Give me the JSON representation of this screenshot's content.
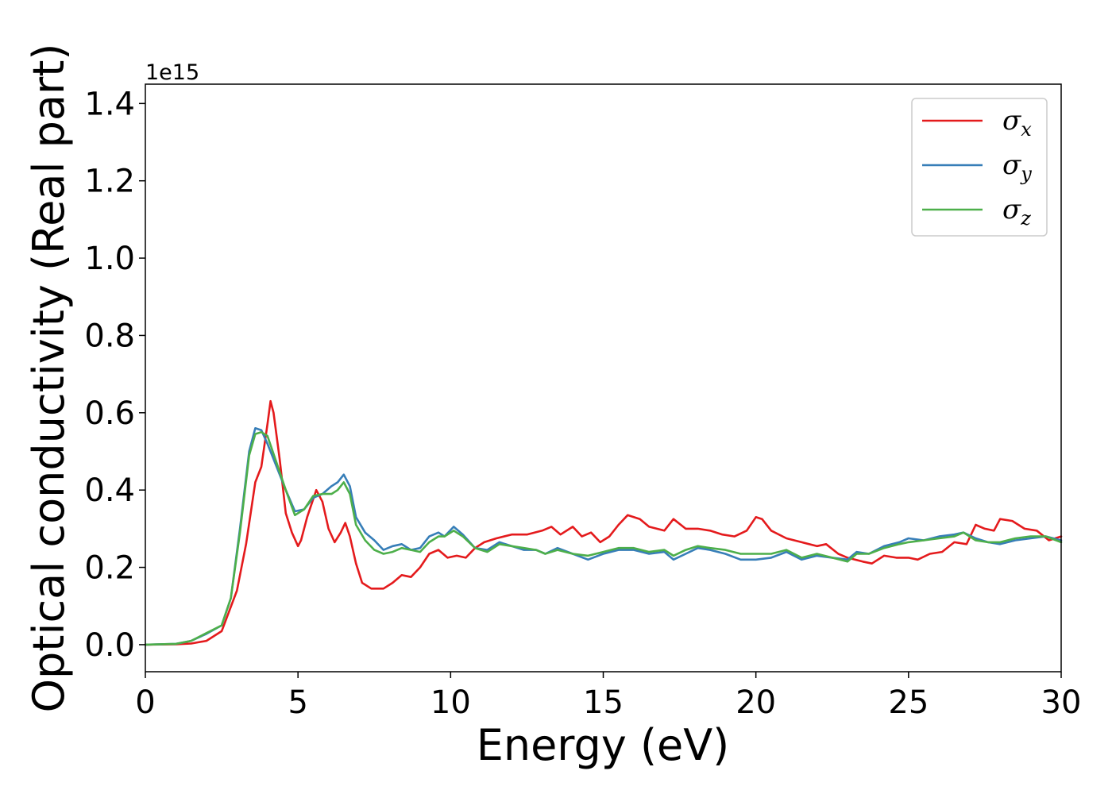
{
  "chart_data": {
    "type": "line",
    "title": "",
    "xlabel": "Energy (eV)",
    "ylabel": "Optical conductivity (Real part)",
    "y_offset_label": "1e15",
    "xlim": [
      0,
      30
    ],
    "ylim": [
      -0.07,
      1.45
    ],
    "xticks": [
      0,
      5,
      10,
      15,
      20,
      25,
      30
    ],
    "yticks": [
      0.0,
      0.2,
      0.4,
      0.6,
      0.8,
      1.0,
      1.2,
      1.4
    ],
    "xtick_labels": [
      "0",
      "5",
      "10",
      "15",
      "20",
      "25",
      "30"
    ],
    "ytick_labels": [
      "0.0",
      "0.2",
      "0.4",
      "0.6",
      "0.8",
      "1.0",
      "1.2",
      "1.4"
    ],
    "grid": false,
    "legend_position": "top-right",
    "series": [
      {
        "name": "σx",
        "name_base": "σ",
        "name_sub": "x",
        "color": "#e41a1c",
        "points": [
          [
            0,
            0
          ],
          [
            1,
            0.001
          ],
          [
            1.5,
            0.003
          ],
          [
            2,
            0.01
          ],
          [
            2.5,
            0.035
          ],
          [
            3,
            0.14
          ],
          [
            3.3,
            0.26
          ],
          [
            3.6,
            0.42
          ],
          [
            3.8,
            0.46
          ],
          [
            4.0,
            0.57
          ],
          [
            4.1,
            0.63
          ],
          [
            4.2,
            0.6
          ],
          [
            4.4,
            0.48
          ],
          [
            4.6,
            0.34
          ],
          [
            4.8,
            0.29
          ],
          [
            5.0,
            0.255
          ],
          [
            5.1,
            0.27
          ],
          [
            5.3,
            0.33
          ],
          [
            5.6,
            0.4
          ],
          [
            5.8,
            0.37
          ],
          [
            6.0,
            0.3
          ],
          [
            6.2,
            0.265
          ],
          [
            6.4,
            0.29
          ],
          [
            6.55,
            0.315
          ],
          [
            6.7,
            0.28
          ],
          [
            6.9,
            0.21
          ],
          [
            7.1,
            0.16
          ],
          [
            7.4,
            0.145
          ],
          [
            7.8,
            0.145
          ],
          [
            8.1,
            0.16
          ],
          [
            8.4,
            0.18
          ],
          [
            8.7,
            0.175
          ],
          [
            9.0,
            0.2
          ],
          [
            9.3,
            0.235
          ],
          [
            9.6,
            0.245
          ],
          [
            9.9,
            0.225
          ],
          [
            10.2,
            0.23
          ],
          [
            10.5,
            0.225
          ],
          [
            10.8,
            0.25
          ],
          [
            11.1,
            0.265
          ],
          [
            11.5,
            0.275
          ],
          [
            12.0,
            0.285
          ],
          [
            12.5,
            0.285
          ],
          [
            13.0,
            0.295
          ],
          [
            13.3,
            0.305
          ],
          [
            13.6,
            0.285
          ],
          [
            14.0,
            0.305
          ],
          [
            14.3,
            0.28
          ],
          [
            14.6,
            0.29
          ],
          [
            14.9,
            0.265
          ],
          [
            15.2,
            0.28
          ],
          [
            15.5,
            0.31
          ],
          [
            15.8,
            0.335
          ],
          [
            16.2,
            0.325
          ],
          [
            16.5,
            0.305
          ],
          [
            17.0,
            0.295
          ],
          [
            17.3,
            0.325
          ],
          [
            17.7,
            0.3
          ],
          [
            18.1,
            0.3
          ],
          [
            18.5,
            0.295
          ],
          [
            18.9,
            0.285
          ],
          [
            19.3,
            0.28
          ],
          [
            19.7,
            0.295
          ],
          [
            20.0,
            0.33
          ],
          [
            20.2,
            0.325
          ],
          [
            20.5,
            0.295
          ],
          [
            21.0,
            0.275
          ],
          [
            21.5,
            0.265
          ],
          [
            22.0,
            0.255
          ],
          [
            22.3,
            0.26
          ],
          [
            22.7,
            0.235
          ],
          [
            23.0,
            0.225
          ],
          [
            23.5,
            0.215
          ],
          [
            23.8,
            0.21
          ],
          [
            24.2,
            0.23
          ],
          [
            24.6,
            0.225
          ],
          [
            25.0,
            0.225
          ],
          [
            25.3,
            0.22
          ],
          [
            25.7,
            0.235
          ],
          [
            26.1,
            0.24
          ],
          [
            26.5,
            0.265
          ],
          [
            26.9,
            0.26
          ],
          [
            27.2,
            0.31
          ],
          [
            27.5,
            0.3
          ],
          [
            27.8,
            0.295
          ],
          [
            28.0,
            0.325
          ],
          [
            28.4,
            0.32
          ],
          [
            28.8,
            0.3
          ],
          [
            29.2,
            0.295
          ],
          [
            29.6,
            0.27
          ],
          [
            30,
            0.28
          ]
        ]
      },
      {
        "name": "σy",
        "name_base": "σ",
        "name_sub": "y",
        "color": "#377eb8",
        "points": [
          [
            0,
            0
          ],
          [
            1,
            0.002
          ],
          [
            1.5,
            0.01
          ],
          [
            2,
            0.028
          ],
          [
            2.5,
            0.05
          ],
          [
            2.8,
            0.12
          ],
          [
            3.1,
            0.3
          ],
          [
            3.4,
            0.5
          ],
          [
            3.6,
            0.56
          ],
          [
            3.8,
            0.555
          ],
          [
            4.0,
            0.52
          ],
          [
            4.3,
            0.46
          ],
          [
            4.6,
            0.4
          ],
          [
            4.9,
            0.345
          ],
          [
            5.2,
            0.35
          ],
          [
            5.5,
            0.38
          ],
          [
            5.8,
            0.39
          ],
          [
            6.1,
            0.41
          ],
          [
            6.3,
            0.42
          ],
          [
            6.5,
            0.44
          ],
          [
            6.7,
            0.41
          ],
          [
            6.9,
            0.33
          ],
          [
            7.2,
            0.29
          ],
          [
            7.5,
            0.27
          ],
          [
            7.8,
            0.245
          ],
          [
            8.1,
            0.255
          ],
          [
            8.4,
            0.26
          ],
          [
            8.7,
            0.245
          ],
          [
            9.0,
            0.25
          ],
          [
            9.3,
            0.28
          ],
          [
            9.6,
            0.29
          ],
          [
            9.8,
            0.28
          ],
          [
            10.1,
            0.305
          ],
          [
            10.4,
            0.285
          ],
          [
            10.8,
            0.25
          ],
          [
            11.2,
            0.245
          ],
          [
            11.6,
            0.265
          ],
          [
            12.0,
            0.255
          ],
          [
            12.4,
            0.245
          ],
          [
            12.8,
            0.245
          ],
          [
            13.1,
            0.235
          ],
          [
            13.5,
            0.25
          ],
          [
            14.0,
            0.235
          ],
          [
            14.5,
            0.22
          ],
          [
            15.0,
            0.235
          ],
          [
            15.5,
            0.245
          ],
          [
            16.0,
            0.245
          ],
          [
            16.5,
            0.235
          ],
          [
            17.0,
            0.24
          ],
          [
            17.3,
            0.22
          ],
          [
            17.7,
            0.235
          ],
          [
            18.1,
            0.25
          ],
          [
            18.5,
            0.245
          ],
          [
            19.0,
            0.235
          ],
          [
            19.5,
            0.22
          ],
          [
            20.0,
            0.22
          ],
          [
            20.5,
            0.225
          ],
          [
            21.0,
            0.24
          ],
          [
            21.5,
            0.22
          ],
          [
            22.0,
            0.23
          ],
          [
            22.5,
            0.225
          ],
          [
            23.0,
            0.22
          ],
          [
            23.3,
            0.24
          ],
          [
            23.7,
            0.235
          ],
          [
            24.2,
            0.255
          ],
          [
            24.7,
            0.265
          ],
          [
            25.0,
            0.275
          ],
          [
            25.5,
            0.27
          ],
          [
            26.0,
            0.28
          ],
          [
            26.5,
            0.285
          ],
          [
            26.8,
            0.29
          ],
          [
            27.2,
            0.275
          ],
          [
            27.6,
            0.265
          ],
          [
            28.0,
            0.26
          ],
          [
            28.5,
            0.27
          ],
          [
            29.0,
            0.275
          ],
          [
            29.5,
            0.28
          ],
          [
            30,
            0.27
          ]
        ]
      },
      {
        "name": "σz",
        "name_base": "σ",
        "name_sub": "z",
        "color": "#4daf4a",
        "points": [
          [
            0,
            0
          ],
          [
            1,
            0.002
          ],
          [
            1.5,
            0.01
          ],
          [
            2,
            0.03
          ],
          [
            2.5,
            0.05
          ],
          [
            2.8,
            0.12
          ],
          [
            3.1,
            0.29
          ],
          [
            3.4,
            0.49
          ],
          [
            3.6,
            0.545
          ],
          [
            3.8,
            0.55
          ],
          [
            4.0,
            0.54
          ],
          [
            4.3,
            0.47
          ],
          [
            4.6,
            0.4
          ],
          [
            4.9,
            0.335
          ],
          [
            5.2,
            0.35
          ],
          [
            5.5,
            0.385
          ],
          [
            5.8,
            0.39
          ],
          [
            6.1,
            0.39
          ],
          [
            6.3,
            0.4
          ],
          [
            6.5,
            0.42
          ],
          [
            6.7,
            0.39
          ],
          [
            6.9,
            0.31
          ],
          [
            7.2,
            0.27
          ],
          [
            7.5,
            0.245
          ],
          [
            7.8,
            0.235
          ],
          [
            8.1,
            0.24
          ],
          [
            8.4,
            0.25
          ],
          [
            8.7,
            0.245
          ],
          [
            9.0,
            0.24
          ],
          [
            9.3,
            0.265
          ],
          [
            9.6,
            0.28
          ],
          [
            9.8,
            0.28
          ],
          [
            10.1,
            0.295
          ],
          [
            10.4,
            0.28
          ],
          [
            10.8,
            0.25
          ],
          [
            11.2,
            0.24
          ],
          [
            11.6,
            0.26
          ],
          [
            12.0,
            0.255
          ],
          [
            12.4,
            0.25
          ],
          [
            12.8,
            0.245
          ],
          [
            13.1,
            0.235
          ],
          [
            13.5,
            0.245
          ],
          [
            14.0,
            0.235
          ],
          [
            14.5,
            0.23
          ],
          [
            15.0,
            0.24
          ],
          [
            15.5,
            0.25
          ],
          [
            16.0,
            0.25
          ],
          [
            16.5,
            0.24
          ],
          [
            17.0,
            0.245
          ],
          [
            17.3,
            0.23
          ],
          [
            17.7,
            0.245
          ],
          [
            18.1,
            0.255
          ],
          [
            18.5,
            0.25
          ],
          [
            19.0,
            0.245
          ],
          [
            19.5,
            0.235
          ],
          [
            20.0,
            0.235
          ],
          [
            20.5,
            0.235
          ],
          [
            21.0,
            0.245
          ],
          [
            21.5,
            0.225
          ],
          [
            22.0,
            0.235
          ],
          [
            22.5,
            0.225
          ],
          [
            23.0,
            0.215
          ],
          [
            23.3,
            0.235
          ],
          [
            23.7,
            0.235
          ],
          [
            24.2,
            0.25
          ],
          [
            24.7,
            0.26
          ],
          [
            25.0,
            0.265
          ],
          [
            25.5,
            0.27
          ],
          [
            26.0,
            0.275
          ],
          [
            26.5,
            0.28
          ],
          [
            26.8,
            0.29
          ],
          [
            27.2,
            0.27
          ],
          [
            27.6,
            0.265
          ],
          [
            28.0,
            0.265
          ],
          [
            28.5,
            0.275
          ],
          [
            29.0,
            0.28
          ],
          [
            29.5,
            0.28
          ],
          [
            30,
            0.265
          ]
        ]
      }
    ]
  }
}
